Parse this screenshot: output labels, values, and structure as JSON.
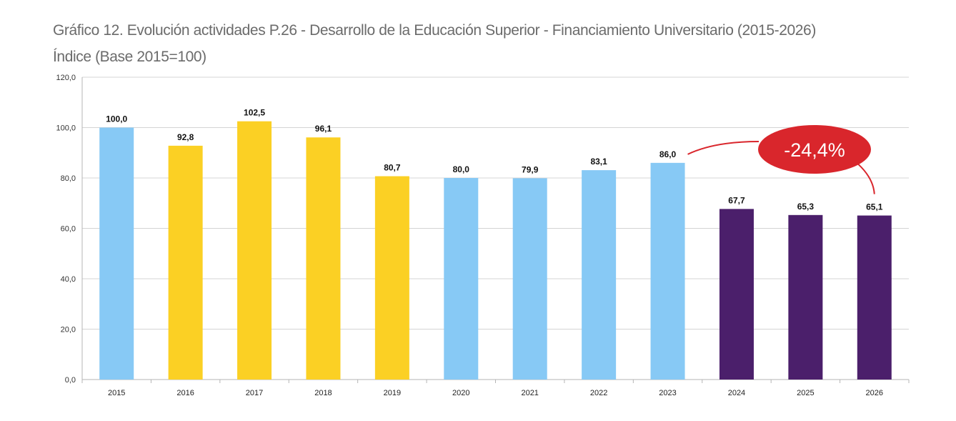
{
  "title": "Gráfico 12. Evolución actividades P.26 - Desarrollo de la Educación Superior - Financiamiento Universitario (2015-2026)",
  "subtitle": "Índice (Base 2015=100)",
  "chart_data": {
    "type": "bar",
    "categories": [
      "2015",
      "2016",
      "2017",
      "2018",
      "2019",
      "2020",
      "2021",
      "2022",
      "2023",
      "2024",
      "2025",
      "2026"
    ],
    "values": [
      100.0,
      92.8,
      102.5,
      96.1,
      80.7,
      80.0,
      79.9,
      83.1,
      86.0,
      67.7,
      65.3,
      65.1
    ],
    "value_labels": [
      "100,0",
      "92,8",
      "102,5",
      "96,1",
      "80,7",
      "80,0",
      "79,9",
      "83,1",
      "86,0",
      "67,7",
      "65,3",
      "65,1"
    ],
    "bar_colors": [
      "#87c9f5",
      "#fbd024",
      "#fbd024",
      "#fbd024",
      "#fbd024",
      "#87c9f5",
      "#87c9f5",
      "#87c9f5",
      "#87c9f5",
      "#4b1f6b",
      "#4b1f6b",
      "#4b1f6b"
    ],
    "y_ticks": [
      0,
      20,
      40,
      60,
      80,
      100,
      120
    ],
    "y_tick_labels": [
      "0,0",
      "20,0",
      "40,0",
      "60,0",
      "80,0",
      "100,0",
      "120,0"
    ],
    "ylim": [
      0,
      120
    ],
    "grid": true,
    "annotation": {
      "text": "-24,4%",
      "from_category": "2023",
      "to_category": "2026",
      "color": "#d9262c"
    }
  }
}
